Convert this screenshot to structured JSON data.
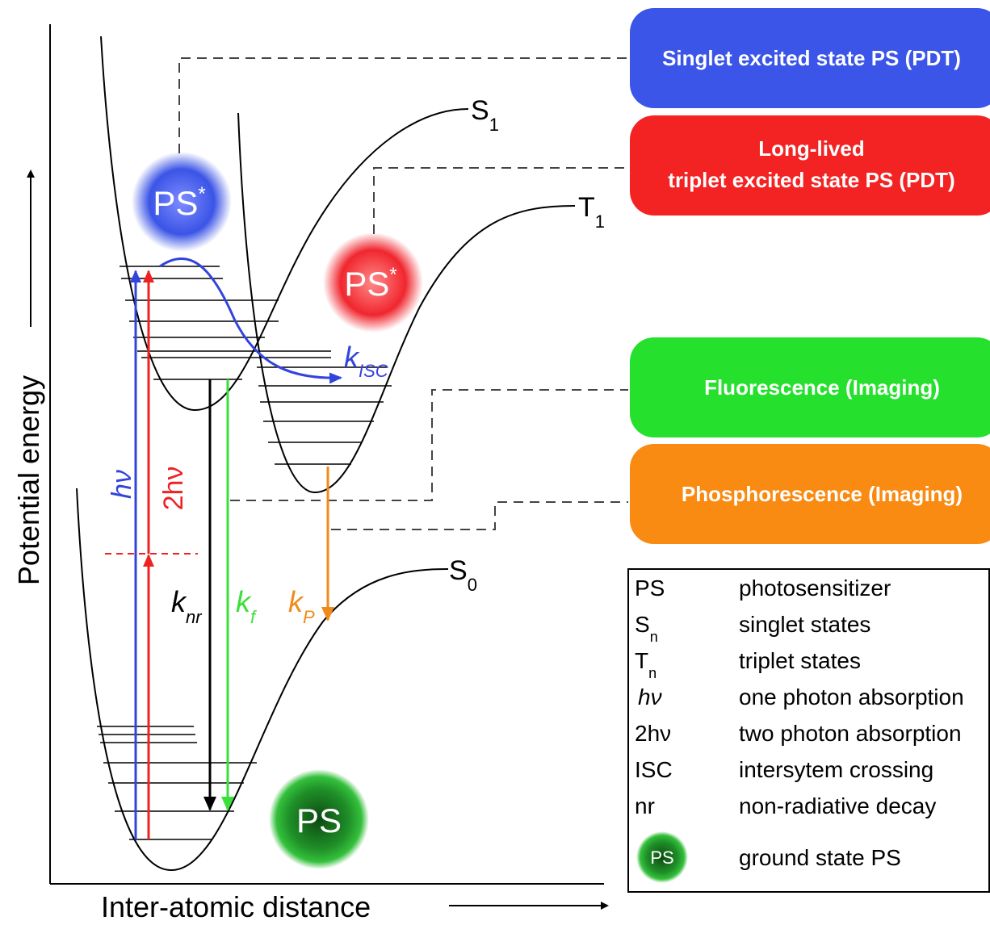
{
  "axes": {
    "y_label": "Potential energy",
    "x_label": "Inter-atomic distance"
  },
  "curves": [
    {
      "label": "S",
      "sub": "1"
    },
    {
      "label": "T",
      "sub": "1"
    },
    {
      "label": "S",
      "sub": "0"
    }
  ],
  "molecules": [
    {
      "label": "PS",
      "sup": "*"
    },
    {
      "label": "PS",
      "sup": "*"
    },
    {
      "label": "PS"
    }
  ],
  "transitions": [
    "hν",
    "2hν"
  ],
  "rates": [
    {
      "k": "k",
      "sub": "nr"
    },
    {
      "k": "k",
      "sub": "f"
    },
    {
      "k": "k",
      "sub": "P"
    },
    {
      "k": "k",
      "sub": "ISC"
    }
  ],
  "boxes": [
    {
      "lines": [
        "Singlet excited state PS (PDT)"
      ]
    },
    {
      "lines": [
        "Long-lived",
        "triplet excited state PS (PDT)"
      ]
    },
    {
      "lines": [
        "Fluorescence (Imaging)"
      ]
    },
    {
      "lines": [
        "Phosphorescence (Imaging)"
      ]
    }
  ],
  "legend": [
    {
      "symbol": "PS",
      "text": "photosensitizer"
    },
    {
      "symbol": "S",
      "sub": "n",
      "text": "singlet states"
    },
    {
      "symbol": "T",
      "sub": "n",
      "text": "triplet states"
    },
    {
      "symbol": "hν",
      "text": "one photon absorption"
    },
    {
      "symbol": "2hν",
      "text": "two photon absorption"
    },
    {
      "symbol": "ISC",
      "text": "intersytem crossing"
    },
    {
      "symbol": "nr",
      "text": "non-radiative decay"
    },
    {
      "symbol": "PS",
      "text": "ground state PS"
    }
  ]
}
